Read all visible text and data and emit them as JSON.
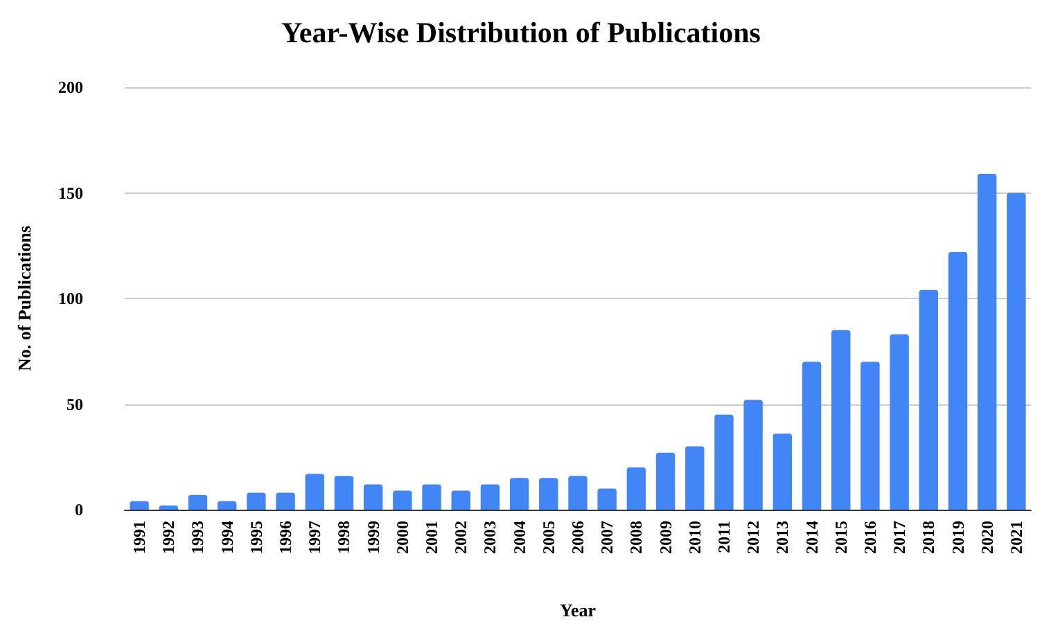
{
  "chart_data": {
    "type": "bar",
    "title": "Year-Wise Distribution of Publications",
    "xlabel": "Year",
    "ylabel": "No. of Publications",
    "categories": [
      "1991",
      "1992",
      "1993",
      "1994",
      "1995",
      "1996",
      "1997",
      "1998",
      "1999",
      "2000",
      "2001",
      "2002",
      "2003",
      "2004",
      "2005",
      "2006",
      "2007",
      "2008",
      "2009",
      "2010",
      "2011",
      "2012",
      "2013",
      "2014",
      "2015",
      "2016",
      "2017",
      "2018",
      "2019",
      "2020",
      "2021"
    ],
    "values": [
      4,
      2,
      7,
      4,
      8,
      8,
      17,
      16,
      12,
      9,
      12,
      9,
      12,
      15,
      15,
      16,
      10,
      20,
      27,
      30,
      45,
      52,
      36,
      70,
      85,
      70,
      83,
      104,
      122,
      159,
      150
    ],
    "color": "#4285f4",
    "ylim": [
      0,
      200
    ],
    "yticks": [
      0,
      50,
      100,
      150,
      200
    ],
    "grid": "y"
  }
}
